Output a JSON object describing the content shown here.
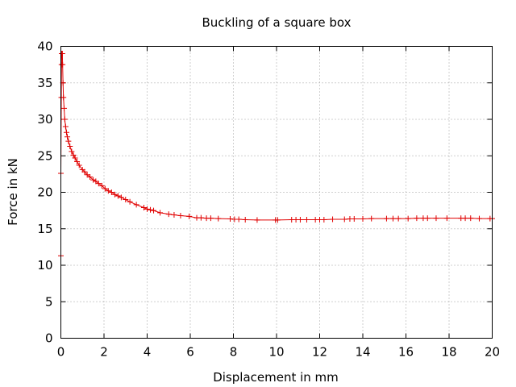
{
  "chart_data": {
    "type": "line",
    "title": "Buckling of a square box",
    "xlabel": "Displacement in mm",
    "ylabel": "Force in kN",
    "xlim": [
      0,
      20
    ],
    "ylim": [
      0,
      40
    ],
    "xticks": [
      0,
      2,
      4,
      6,
      8,
      10,
      12,
      14,
      16,
      18,
      20
    ],
    "yticks": [
      0,
      5,
      10,
      15,
      20,
      25,
      30,
      35,
      40
    ],
    "grid": true,
    "legend": "none",
    "series": [
      {
        "color": "#e00000",
        "marker": "plus",
        "points": [
          [
            0.0,
            11.3
          ],
          [
            0.0,
            22.6
          ],
          [
            0.02,
            33.0
          ],
          [
            0.03,
            37.5
          ],
          [
            0.04,
            39.0
          ],
          [
            0.07,
            39.0
          ],
          [
            0.08,
            37.5
          ],
          [
            0.1,
            35.0
          ],
          [
            0.12,
            33.0
          ],
          [
            0.15,
            31.5
          ],
          [
            0.18,
            30.0
          ],
          [
            0.22,
            29.0
          ],
          [
            0.26,
            28.2
          ],
          [
            0.3,
            27.6
          ],
          [
            0.35,
            27.0
          ],
          [
            0.42,
            26.3
          ],
          [
            0.5,
            25.6
          ],
          [
            0.58,
            25.1
          ],
          [
            0.66,
            24.7
          ],
          [
            0.75,
            24.2
          ],
          [
            0.85,
            23.7
          ],
          [
            1.0,
            23.1
          ],
          [
            1.1,
            22.8
          ],
          [
            1.22,
            22.4
          ],
          [
            1.35,
            22.1
          ],
          [
            1.5,
            21.7
          ],
          [
            1.62,
            21.5
          ],
          [
            1.75,
            21.2
          ],
          [
            1.9,
            20.9
          ],
          [
            2.05,
            20.5
          ],
          [
            2.2,
            20.2
          ],
          [
            2.35,
            20.0
          ],
          [
            2.5,
            19.7
          ],
          [
            2.65,
            19.5
          ],
          [
            2.8,
            19.3
          ],
          [
            3.0,
            19.0
          ],
          [
            3.2,
            18.7
          ],
          [
            3.5,
            18.3
          ],
          [
            3.85,
            17.9
          ],
          [
            4.0,
            17.7
          ],
          [
            4.15,
            17.6
          ],
          [
            4.3,
            17.5
          ],
          [
            4.6,
            17.2
          ],
          [
            5.0,
            17.0
          ],
          [
            5.25,
            16.9
          ],
          [
            5.55,
            16.8
          ],
          [
            5.95,
            16.7
          ],
          [
            6.3,
            16.5
          ],
          [
            6.5,
            16.5
          ],
          [
            6.75,
            16.45
          ],
          [
            6.95,
            16.45
          ],
          [
            7.3,
            16.4
          ],
          [
            7.85,
            16.35
          ],
          [
            8.05,
            16.3
          ],
          [
            8.25,
            16.3
          ],
          [
            8.55,
            16.25
          ],
          [
            9.1,
            16.2
          ],
          [
            9.95,
            16.2
          ],
          [
            10.05,
            16.2
          ],
          [
            10.7,
            16.25
          ],
          [
            10.9,
            16.25
          ],
          [
            11.1,
            16.25
          ],
          [
            11.4,
            16.25
          ],
          [
            11.8,
            16.25
          ],
          [
            12.0,
            16.25
          ],
          [
            12.2,
            16.25
          ],
          [
            12.6,
            16.3
          ],
          [
            13.15,
            16.3
          ],
          [
            13.4,
            16.35
          ],
          [
            13.6,
            16.35
          ],
          [
            14.0,
            16.35
          ],
          [
            14.4,
            16.4
          ],
          [
            15.1,
            16.4
          ],
          [
            15.4,
            16.4
          ],
          [
            15.65,
            16.4
          ],
          [
            16.1,
            16.4
          ],
          [
            16.5,
            16.45
          ],
          [
            16.8,
            16.45
          ],
          [
            17.0,
            16.45
          ],
          [
            17.4,
            16.45
          ],
          [
            17.9,
            16.45
          ],
          [
            18.55,
            16.45
          ],
          [
            18.75,
            16.45
          ],
          [
            19.0,
            16.45
          ],
          [
            19.4,
            16.4
          ],
          [
            19.9,
            16.4
          ],
          [
            20.0,
            16.4
          ]
        ]
      }
    ]
  }
}
